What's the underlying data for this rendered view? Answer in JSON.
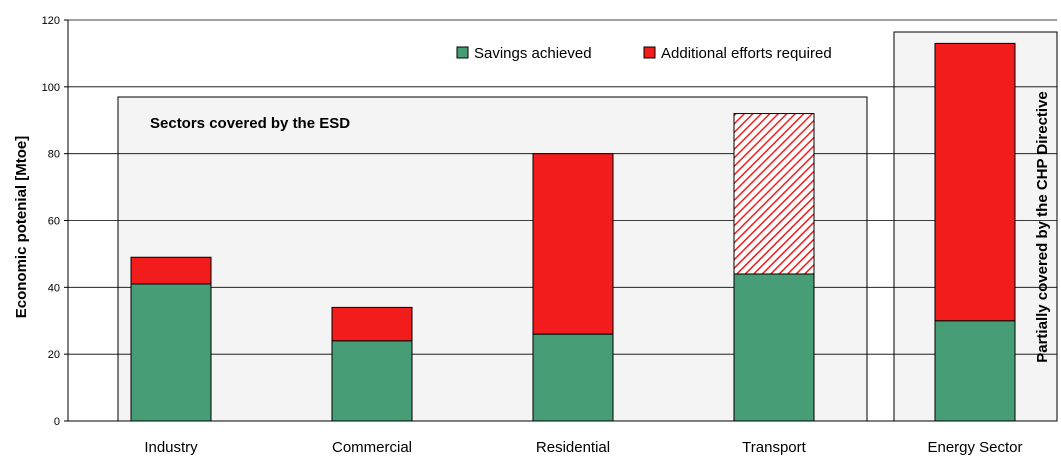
{
  "chart_data": {
    "type": "bar",
    "stacked": true,
    "title": "",
    "xlabel": "",
    "ylabel": "Economic potenial [Mtoe]",
    "ylim": [
      0,
      120
    ],
    "yticks": [
      0,
      20,
      40,
      60,
      80,
      100,
      120
    ],
    "grid": true,
    "legend_position": "top-right",
    "categories": [
      "Industry",
      "Commercial",
      "Residential",
      "Transport",
      "Energy Sector"
    ],
    "series": [
      {
        "name": "Savings achieved",
        "color": "#479E76",
        "values": [
          41,
          24,
          26,
          44,
          30
        ]
      },
      {
        "name": "Additional efforts required",
        "color": "#F21C1C",
        "values": [
          8,
          10,
          54,
          48,
          83
        ],
        "hatched_categories": [
          "Transport"
        ]
      }
    ],
    "annotations": {
      "esd_box_label": "Sectors covered by the ESD",
      "chp_box_label": "Partially covered by the CHP Directive"
    }
  }
}
